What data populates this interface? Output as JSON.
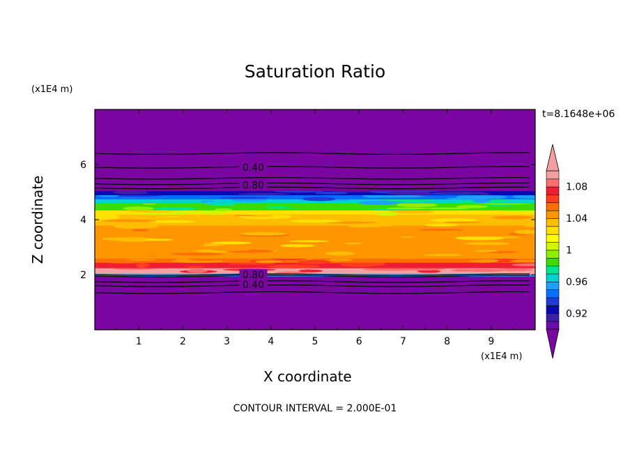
{
  "chart_data": {
    "type": "heatmap",
    "title": "Saturation Ratio",
    "xlabel": "X coordinate",
    "ylabel": "Z coordinate",
    "x_unit": "(x1E4 m)",
    "y_unit": "(x1E4 m)",
    "time_label": "t=8.1648e+06",
    "footer": "CONTOUR INTERVAL = 2.000E-01",
    "xlim": [
      0,
      10
    ],
    "ylim": [
      0,
      8
    ],
    "x_ticks": [
      1,
      2,
      3,
      4,
      5,
      6,
      7,
      8,
      9
    ],
    "y_ticks": [
      2,
      4,
      6
    ],
    "contour_labels": [
      {
        "text": "0.40",
        "x": 3.6,
        "z": 5.9
      },
      {
        "text": "0.80",
        "x": 3.6,
        "z": 5.25
      },
      {
        "text": "0.80",
        "x": 3.6,
        "z": 2.0
      },
      {
        "text": "0.40",
        "x": 3.6,
        "z": 1.65
      }
    ],
    "colorbar": {
      "tick_labels": [
        "1.08",
        "1.04",
        "1",
        "0.96",
        "0.92"
      ],
      "tick_values": [
        1.08,
        1.04,
        1.0,
        0.96,
        0.92
      ],
      "levels": [
        0.9,
        0.91,
        0.92,
        0.93,
        0.94,
        0.95,
        0.96,
        0.97,
        0.98,
        0.99,
        1.0,
        1.01,
        1.02,
        1.03,
        1.04,
        1.05,
        1.06,
        1.07,
        1.08,
        1.09,
        1.1
      ],
      "colors": [
        "#6a0aa8",
        "#3c1ea8",
        "#0a0ab4",
        "#1e3cdc",
        "#0a6eff",
        "#1ea0ff",
        "#00d2d2",
        "#00e68c",
        "#3cdc00",
        "#8cf000",
        "#d2f500",
        "#ffff00",
        "#ffe100",
        "#ffbe00",
        "#ff9600",
        "#ff6e00",
        "#ff3c1e",
        "#f01e32",
        "#ff6e6e",
        "#f5a0a0"
      ],
      "under_color": "#7a05a0",
      "over_color": "#f5a0a0"
    },
    "bands": [
      {
        "z0": 0.0,
        "z1": 1.95,
        "value": 0.3
      },
      {
        "z0": 1.95,
        "z1": 2.05,
        "value": 0.95
      },
      {
        "z0": 2.05,
        "z1": 2.25,
        "value": 1.09
      },
      {
        "z0": 2.25,
        "z1": 2.45,
        "value": 1.07
      },
      {
        "z0": 2.45,
        "z1": 2.6,
        "value": 1.055
      },
      {
        "z0": 2.6,
        "z1": 3.0,
        "value": 1.045
      },
      {
        "z0": 3.0,
        "z1": 3.4,
        "value": 1.04
      },
      {
        "z0": 3.4,
        "z1": 3.8,
        "value": 1.045
      },
      {
        "z0": 3.8,
        "z1": 4.2,
        "value": 1.035
      },
      {
        "z0": 4.2,
        "z1": 4.35,
        "value": 1.02
      },
      {
        "z0": 4.35,
        "z1": 4.6,
        "value": 0.985
      },
      {
        "z0": 4.6,
        "z1": 4.75,
        "value": 0.965
      },
      {
        "z0": 4.75,
        "z1": 4.9,
        "value": 0.945
      },
      {
        "z0": 4.9,
        "z1": 5.05,
        "value": 0.925
      },
      {
        "z0": 5.05,
        "z1": 8.0,
        "value": 0.4
      }
    ],
    "contour_lines_z": [
      1.35,
      1.6,
      1.75,
      1.95,
      2.0,
      5.15,
      5.3,
      5.5,
      5.9,
      6.4
    ]
  }
}
